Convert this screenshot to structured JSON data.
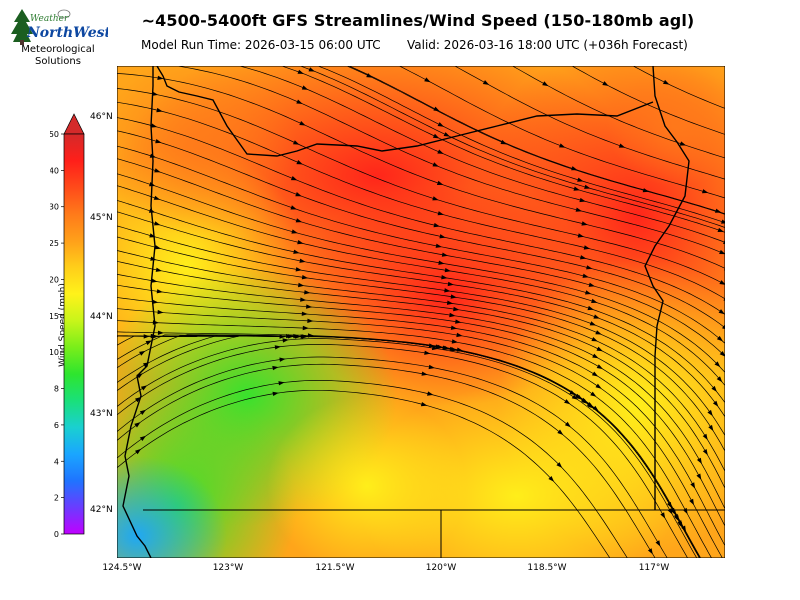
{
  "header": {
    "title": "~4500-5400ft GFS Streamlines/Wind Speed (150-180mb agl)",
    "model_run": "Model Run Time: 2026-03-15 06:00 UTC",
    "valid": "Valid: 2026-03-16 18:00 UTC  (+036h Forecast)"
  },
  "logo": {
    "word1": "Weather",
    "word2": "NorthWest",
    "org_line1": "Meteorological",
    "org_line2": "Solutions"
  },
  "colorbar": {
    "label": "Wind Speed (mph)",
    "ticks": [
      "0",
      "2",
      "4",
      "6",
      "8",
      "10",
      "15",
      "20",
      "25",
      "30",
      "40",
      "50"
    ],
    "stops": [
      "#c000ff",
      "#6a3cff",
      "#1f74ff",
      "#1aa6ff",
      "#1ad0d0",
      "#1ae07a",
      "#2ee52e",
      "#7aee1a",
      "#c8f51a",
      "#fff21a",
      "#ffce1a",
      "#ffa01a",
      "#ff7a1a",
      "#ff4a1a",
      "#ff1f1a",
      "#d42a2a"
    ]
  },
  "map": {
    "lat_labels": [
      "46°N",
      "45°N",
      "44°N",
      "43°N",
      "42°N"
    ],
    "lon_labels": [
      "124.5°W",
      "123°W",
      "121.5°W",
      "120°W",
      "118.5°W",
      "117°W"
    ]
  }
}
